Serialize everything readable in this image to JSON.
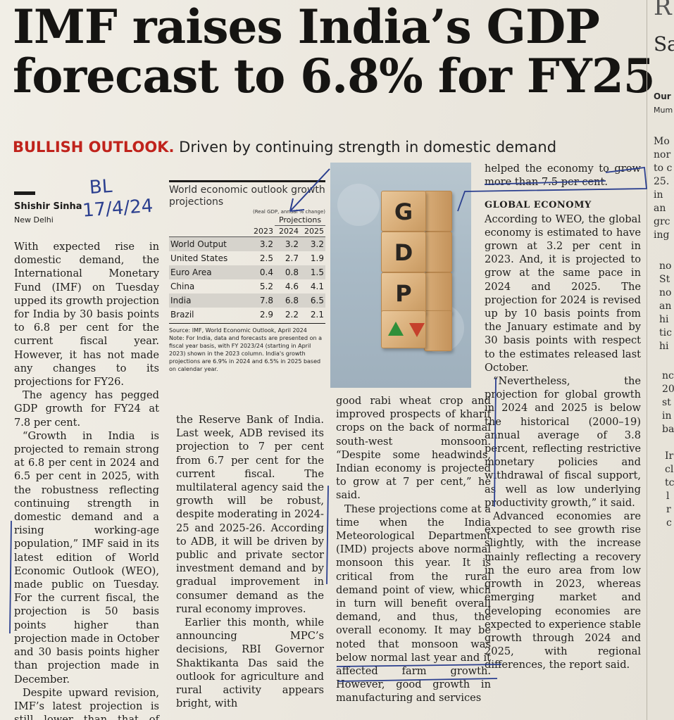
{
  "headline": {
    "line1": "IMF raises India’s GDP",
    "line2": "forecast to 6.8% for FY25"
  },
  "subhead": {
    "kicker": "BULLISH OUTLOOK.",
    "text": " Driven by continuing strength in domestic demand"
  },
  "byline": {
    "name": "Shishir Sinha",
    "place": "New Delhi",
    "handwritten_note_1": "BL",
    "handwritten_note_2": "17/4/24"
  },
  "table": {
    "title": "World economic outlook growth projections",
    "units": "(Real GDP, annual % change)",
    "projections_label": "Projections",
    "columns": [
      "2023",
      "2024",
      "2025"
    ],
    "rows": [
      {
        "country": "World Output",
        "values": [
          "3.2",
          "3.2",
          "3.2"
        ]
      },
      {
        "country": "United States",
        "values": [
          "2.5",
          "2.7",
          "1.9"
        ]
      },
      {
        "country": "Euro Area",
        "values": [
          "0.4",
          "0.8",
          "1.5"
        ]
      },
      {
        "country": "China",
        "values": [
          "5.2",
          "4.6",
          "4.1"
        ]
      },
      {
        "country": "India",
        "values": [
          "7.8",
          "6.8",
          "6.5"
        ]
      },
      {
        "country": "Brazil",
        "values": [
          "2.9",
          "2.2",
          "2.1"
        ]
      }
    ],
    "source": "Source: IMF, World Economic Outlook, April 2024",
    "note": "Note: For India, data and forecasts are presented on a fiscal year basis, with FY 2023/24 (starting in April 2023) shown in the 2023 column. India's growth projections are 6.9% in 2024 and 6.5% in 2025 based on calendar year."
  },
  "photo": {
    "blocks": [
      "G",
      "D",
      "P"
    ],
    "accent_up": "#2f8f3a",
    "accent_down": "#c5402c"
  },
  "body": {
    "col1": [
      "With expected rise in domestic demand, the International Monetary Fund (IMF) on Tuesday upped its growth projection for India by 30 basis points to 6.8 per cent for the current fiscal year. However, it has not made any changes to its projections for FY26.",
      "The agency has pegged GDP growth for FY24 at 7.8 per cent.",
      "“Growth in India is projected to remain strong at 6.8 per cent in 2024 and 6.5 per cent in 2025, with the robustness reflecting continuing strength in domestic demand and a rising working-age population,” IMF said in its latest edition of World Economic Outlook (WEO), made public on Tuesday. For the current fiscal, the projection is 50 basis points higher than projection made in October and 30 basis points higher than projection made in December.",
      "Despite upward revision, IMF’s latest projection is still lower than that of Asian Development Bank (ADB) and"
    ],
    "col2": [
      "the Reserve Bank of India. Last week, ADB revised its projection to 7 per cent from 6.7 per cent for the current fiscal. The multilateral agency said the growth will be robust, despite moderating in 2024-25 and 2025-26. According to ADB, it will be driven by public and private sector investment demand and by gradual improvement in consumer demand as the rural economy improves.",
      "Earlier this month, while announcing MPC’s decisions, RBI Governor Shaktikanta Das said the outlook for agriculture and rural activity appears bright, with"
    ],
    "col3": [
      "good rabi wheat crop and improved prospects of kharif crops on the back of normal south-west monsoon. “Despite some headwinds, Indian economy is projected to grow at 7 per cent,” he said.",
      "These projections come at a time when the India Meteorological Department (IMD) projects above normal monsoon this year. It is critical from the rural demand point of view, which in turn will benefit overall demand, and thus, the overall economy. It may be noted that monsoon was below normal last year and it affected farm growth. However, good growth in manufacturing and services"
    ],
    "col4_top": "helped the economy to grow more than 7.5 per cent.",
    "col4_head": "GLOBAL ECONOMY",
    "col4": [
      "According to WEO, the global economy is estimated to have grown at 3.2 per cent in 2023. And, it is projected to grow at the same pace in 2024 and 2025. The projection for 2024 is revised up by 10 basis points from the January estimate and by 30 basis points with respect to the estimates released last October.",
      "“Nevertheless, the projection for global growth in 2024 and 2025 is below the historical (2000–19) annual average of 3.8 percent, reflecting restrictive monetary policies and withdrawal of fiscal support, as well as low underlying productivity growth,” it said.",
      "Advanced economies are expected to see growth rise slightly, with the increase mainly reflecting a recovery in the euro area from low growth in 2023, whereas emerging market and developing economies are expected to experience stable growth through 2024 and 2025, with regional differences, the report said."
    ]
  },
  "edge_fragments": [
    "R",
    "Sa",
    "Our",
    "Mum",
    "Mo",
    "nor",
    "to c",
    "25.",
    "in",
    "an",
    "grc",
    "ing",
    "no",
    "St",
    "no",
    "an",
    "hi",
    "tic",
    "hi",
    "nc",
    "20",
    "st",
    "in",
    "ba",
    "Ir",
    "cl",
    "tc",
    "l",
    "r",
    "c"
  ],
  "colors": {
    "kicker": "#c0231c",
    "ink_annotation": "#2b3f8f",
    "table_shade": "#d6d3cc"
  }
}
